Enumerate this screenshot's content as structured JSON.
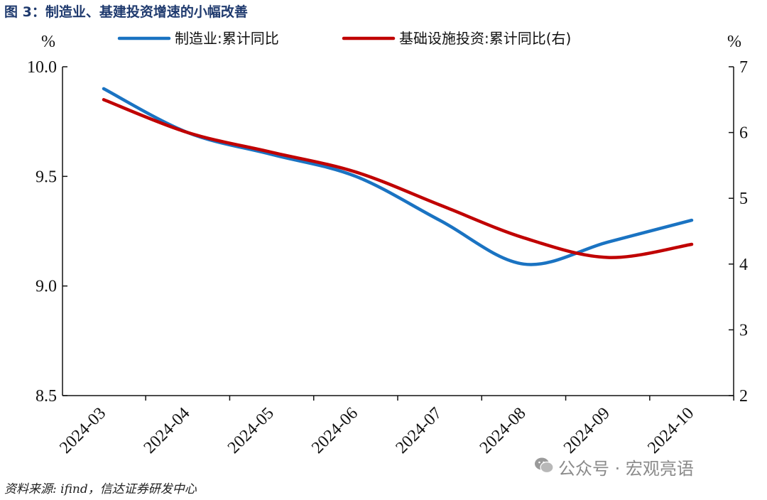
{
  "figure": {
    "title": "图 3：制造业、基建投资增速的小幅改善",
    "source": "资料来源: ifind，信达证券研发中心",
    "watermark": "公众号 · 宏观亮语"
  },
  "chart_data": {
    "type": "line",
    "categories": [
      "2024-03",
      "2024-04",
      "2024-05",
      "2024-06",
      "2024-07",
      "2024-08",
      "2024-09",
      "2024-10"
    ],
    "y_left": {
      "unit": "%",
      "ylim": [
        8.5,
        10.0
      ],
      "ticks": [
        "8.5",
        "9.0",
        "9.5",
        "10.0"
      ]
    },
    "y_right": {
      "unit": "%",
      "ylim": [
        2,
        7
      ],
      "ticks": [
        "2",
        "3",
        "4",
        "5",
        "6",
        "7"
      ]
    },
    "series": [
      {
        "name": "制造业:累计同比",
        "axis": "left",
        "color": "#1a73c2",
        "values": [
          9.9,
          9.7,
          9.6,
          9.5,
          9.3,
          9.1,
          9.2,
          9.3
        ]
      },
      {
        "name": "基础设施投资:累计同比(右)",
        "axis": "right",
        "color": "#c00000",
        "values": [
          6.5,
          6.0,
          5.7,
          5.4,
          4.9,
          4.4,
          4.1,
          4.3
        ]
      }
    ],
    "legend": "top-center",
    "grid": false
  }
}
